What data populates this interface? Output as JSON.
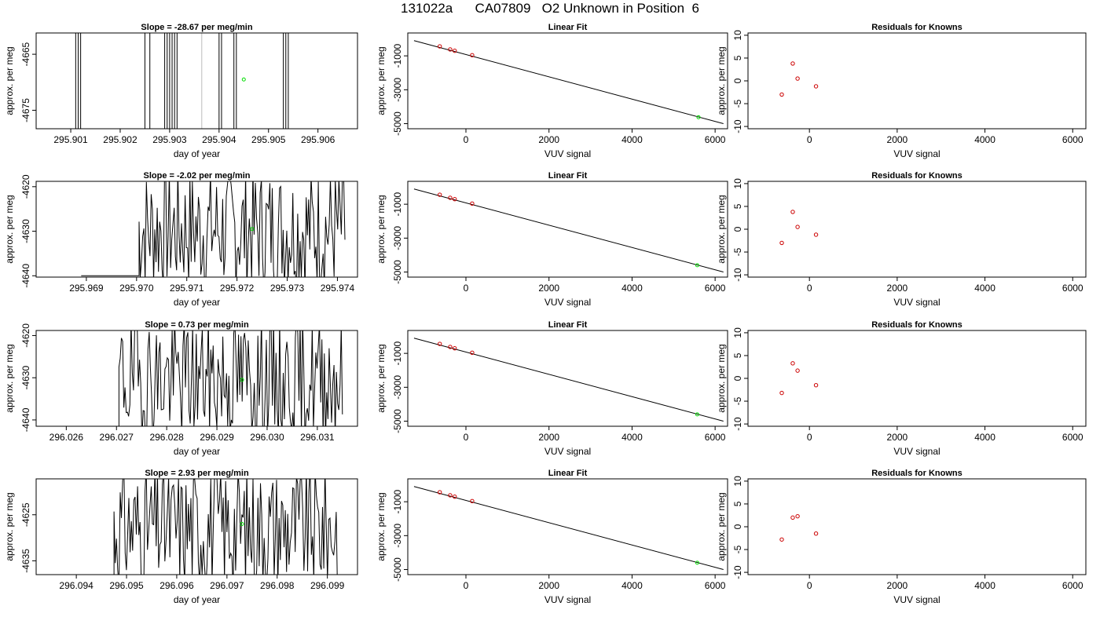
{
  "page_title": "131022a      CA07809   O2 Unknown in Position  6",
  "colors": {
    "known": "#cc0000",
    "unknown": "#00dd00",
    "line": "#000000",
    "grey_line": "#bbbbbb"
  },
  "chart_data": [
    {
      "type": "line",
      "title": "Slope =  -28.67  per meg/min",
      "xlabel": "day of year",
      "ylabel": "approx. per meg",
      "xlim": [
        295.9003,
        295.9068
      ],
      "ylim": [
        -4678.3,
        -4661.2
      ],
      "xticks": [
        295.901,
        295.902,
        295.903,
        295.904,
        295.905,
        295.906
      ],
      "xtick_labels": [
        "295.901",
        "295.902",
        "295.903",
        "295.904",
        "295.905",
        "295.906"
      ],
      "yticks": [
        -4665,
        -4675
      ],
      "ytick_labels": [
        "-4665",
        "-4675"
      ],
      "vertical_lines_black": [
        295.9011,
        295.90115,
        295.9012,
        295.9025,
        295.9026,
        295.9029,
        295.90295,
        295.903,
        295.90305,
        295.9031,
        295.90315,
        295.904,
        295.90405,
        295.9043,
        295.90435,
        295.9053,
        295.90535,
        295.9054
      ],
      "vertical_lines_grey": [
        295.90365
      ],
      "unknown_point": {
        "x": 295.9045,
        "y": -4669.5
      }
    },
    {
      "type": "scatter",
      "title": "Linear Fit",
      "xlabel": "VUV signal",
      "ylabel": "approx. per meg",
      "xlim": [
        -1400,
        6300
      ],
      "ylim": [
        -5300,
        350
      ],
      "xticks": [
        0,
        2000,
        4000,
        6000
      ],
      "xtick_labels": [
        "0",
        "2000",
        "4000",
        "6000"
      ],
      "yticks": [
        -1000,
        -3000,
        -5000
      ],
      "ytick_labels": [
        "-1000",
        "-3000",
        "-5000"
      ],
      "fit_line": {
        "x": [
          -1250,
          6200
        ],
        "y": [
          -100,
          -5000
        ]
      },
      "known_points": [
        {
          "x": -630,
          "y": -440
        },
        {
          "x": -380,
          "y": -620
        },
        {
          "x": -270,
          "y": -700
        },
        {
          "x": 150,
          "y": -960
        }
      ],
      "unknown_point": {
        "x": 5600,
        "y": -4620
      }
    },
    {
      "type": "scatter",
      "title": "Residuals for Knowns",
      "xlabel": "VUV signal",
      "ylabel": "approx. per meg",
      "xlim": [
        -1400,
        6300
      ],
      "ylim": [
        -10.5,
        10.5
      ],
      "xticks": [
        0,
        2000,
        4000,
        6000
      ],
      "xtick_labels": [
        "0",
        "2000",
        "4000",
        "6000"
      ],
      "yticks": [
        10,
        5,
        0,
        -5,
        -10
      ],
      "ytick_labels": [
        "10",
        "5",
        "0",
        "-5",
        "-10"
      ],
      "known_points": [
        {
          "x": -630,
          "y": -3.0
        },
        {
          "x": -380,
          "y": 3.8
        },
        {
          "x": -270,
          "y": 0.5
        },
        {
          "x": 150,
          "y": -1.2
        }
      ]
    },
    {
      "type": "line",
      "title": "Slope =  -2.02  per meg/min",
      "xlabel": "day of year",
      "ylabel": "approx. per meg",
      "xlim": [
        295.968,
        295.9744
      ],
      "ylim": [
        -4640.3,
        -4618.8
      ],
      "xticks": [
        295.969,
        295.97,
        295.971,
        295.972,
        295.973,
        295.974
      ],
      "xtick_labels": [
        "295.969",
        "295.970",
        "295.971",
        "295.972",
        "295.973",
        "295.974"
      ],
      "yticks": [
        -4620,
        -4630,
        -4640
      ],
      "ytick_labels": [
        "-4620",
        "-4630",
        "-4640"
      ],
      "signal": {
        "x_start": 295.97005,
        "x_end": 295.97415,
        "n": 170,
        "seed": 7
      },
      "flat_level": -4640,
      "unknown_point": {
        "x": 295.9723,
        "y": -4629.5
      }
    },
    {
      "type": "scatter",
      "title": "Linear Fit",
      "xlabel": "VUV signal",
      "ylabel": "approx. per meg",
      "xlim": [
        -1400,
        6300
      ],
      "ylim": [
        -5300,
        350
      ],
      "xticks": [
        0,
        2000,
        4000,
        6000
      ],
      "xtick_labels": [
        "0",
        "2000",
        "4000",
        "6000"
      ],
      "yticks": [
        -1000,
        -3000,
        -5000
      ],
      "ytick_labels": [
        "-1000",
        "-3000",
        "-5000"
      ],
      "fit_line": {
        "x": [
          -1250,
          6200
        ],
        "y": [
          -100,
          -5000
        ]
      },
      "known_points": [
        {
          "x": -630,
          "y": -440
        },
        {
          "x": -380,
          "y": -620
        },
        {
          "x": -270,
          "y": -700
        },
        {
          "x": 150,
          "y": -960
        }
      ],
      "unknown_point": {
        "x": 5570,
        "y": -4600
      }
    },
    {
      "type": "scatter",
      "title": "Residuals for Knowns",
      "xlabel": "VUV signal",
      "ylabel": "approx. per meg",
      "xlim": [
        -1400,
        6300
      ],
      "ylim": [
        -10.5,
        10.5
      ],
      "xticks": [
        0,
        2000,
        4000,
        6000
      ],
      "xtick_labels": [
        "0",
        "2000",
        "4000",
        "6000"
      ],
      "yticks": [
        10,
        5,
        0,
        -5,
        -10
      ],
      "ytick_labels": [
        "10",
        "5",
        "0",
        "-5",
        "-10"
      ],
      "known_points": [
        {
          "x": -630,
          "y": -3.0
        },
        {
          "x": -380,
          "y": 3.8
        },
        {
          "x": -270,
          "y": 0.5
        },
        {
          "x": 150,
          "y": -1.2
        }
      ]
    },
    {
      "type": "line",
      "title": "Slope =  0.73  per meg/min",
      "xlabel": "day of year",
      "ylabel": "approx. per meg",
      "xlim": [
        296.0254,
        296.0318
      ],
      "ylim": [
        -4641.5,
        -4618.8
      ],
      "xticks": [
        296.026,
        296.027,
        296.028,
        296.029,
        296.03,
        296.031
      ],
      "xtick_labels": [
        "296.026",
        "296.027",
        "296.028",
        "296.029",
        "296.030",
        "296.031"
      ],
      "yticks": [
        -4620,
        -4630,
        -4640
      ],
      "ytick_labels": [
        "-4620",
        "-4630",
        "-4640"
      ],
      "signal": {
        "x_start": 296.02705,
        "x_end": 296.0315,
        "n": 185,
        "seed": 19
      },
      "flat_level": -4641.5,
      "unknown_point": {
        "x": 296.0295,
        "y": -4630.5
      }
    },
    {
      "type": "scatter",
      "title": "Linear Fit",
      "xlabel": "VUV signal",
      "ylabel": "approx. per meg",
      "xlim": [
        -1400,
        6300
      ],
      "ylim": [
        -5300,
        350
      ],
      "xticks": [
        0,
        2000,
        4000,
        6000
      ],
      "xtick_labels": [
        "0",
        "2000",
        "4000",
        "6000"
      ],
      "yticks": [
        -1000,
        -3000,
        -5000
      ],
      "ytick_labels": [
        "-1000",
        "-3000",
        "-5000"
      ],
      "fit_line": {
        "x": [
          -1250,
          6200
        ],
        "y": [
          -100,
          -5000
        ]
      },
      "known_points": [
        {
          "x": -630,
          "y": -440
        },
        {
          "x": -380,
          "y": -620
        },
        {
          "x": -270,
          "y": -700
        },
        {
          "x": 150,
          "y": -960
        }
      ],
      "unknown_point": {
        "x": 5570,
        "y": -4600
      }
    },
    {
      "type": "scatter",
      "title": "Residuals for Knowns",
      "xlabel": "VUV signal",
      "ylabel": "approx. per meg",
      "xlim": [
        -1400,
        6300
      ],
      "ylim": [
        -10.5,
        10.5
      ],
      "xticks": [
        0,
        2000,
        4000,
        6000
      ],
      "xtick_labels": [
        "0",
        "2000",
        "4000",
        "6000"
      ],
      "yticks": [
        10,
        5,
        0,
        -5,
        -10
      ],
      "ytick_labels": [
        "10",
        "5",
        "0",
        "-5",
        "-10"
      ],
      "known_points": [
        {
          "x": -630,
          "y": -3.2
        },
        {
          "x": -380,
          "y": 3.3
        },
        {
          "x": -270,
          "y": 1.7
        },
        {
          "x": 150,
          "y": -1.5
        }
      ]
    },
    {
      "type": "line",
      "title": "Slope =  2.93  per meg/min",
      "xlabel": "day of year",
      "ylabel": "approx. per meg",
      "xlim": [
        296.0932,
        296.0996
      ],
      "ylim": [
        -4638,
        -4617.2
      ],
      "xticks": [
        296.094,
        296.095,
        296.096,
        296.097,
        296.098,
        296.099
      ],
      "xtick_labels": [
        "296.094",
        "296.095",
        "296.096",
        "296.097",
        "296.098",
        "296.099"
      ],
      "yticks": [
        -4625,
        -4635
      ],
      "ytick_labels": [
        "-4625",
        "-4635"
      ],
      "signal": {
        "x_start": 296.09475,
        "x_end": 296.0992,
        "n": 180,
        "seed": 31
      },
      "flat_level": -4638,
      "unknown_point": {
        "x": 296.0973,
        "y": -4627
      }
    },
    {
      "type": "scatter",
      "title": "Linear Fit",
      "xlabel": "VUV signal",
      "ylabel": "approx. per meg",
      "xlim": [
        -1400,
        6300
      ],
      "ylim": [
        -5300,
        350
      ],
      "xticks": [
        0,
        2000,
        4000,
        6000
      ],
      "xtick_labels": [
        "0",
        "2000",
        "4000",
        "6000"
      ],
      "yticks": [
        -1000,
        -3000,
        -5000
      ],
      "ytick_labels": [
        "-1000",
        "-3000",
        "-5000"
      ],
      "fit_line": {
        "x": [
          -1250,
          6200
        ],
        "y": [
          -100,
          -5000
        ]
      },
      "known_points": [
        {
          "x": -630,
          "y": -440
        },
        {
          "x": -380,
          "y": -620
        },
        {
          "x": -270,
          "y": -700
        },
        {
          "x": 150,
          "y": -960
        }
      ],
      "unknown_point": {
        "x": 5570,
        "y": -4600
      }
    },
    {
      "type": "scatter",
      "title": "Residuals for Knowns",
      "xlabel": "VUV signal",
      "ylabel": "approx. per meg",
      "xlim": [
        -1400,
        6300
      ],
      "ylim": [
        -10.5,
        10.5
      ],
      "xticks": [
        0,
        2000,
        4000,
        6000
      ],
      "xtick_labels": [
        "0",
        "2000",
        "4000",
        "6000"
      ],
      "yticks": [
        10,
        5,
        0,
        -5,
        -10
      ],
      "ytick_labels": [
        "10",
        "5",
        "0",
        "-5",
        "-10"
      ],
      "known_points": [
        {
          "x": -630,
          "y": -2.8
        },
        {
          "x": -380,
          "y": 2.0
        },
        {
          "x": -270,
          "y": 2.3
        },
        {
          "x": 150,
          "y": -1.5
        }
      ]
    }
  ]
}
